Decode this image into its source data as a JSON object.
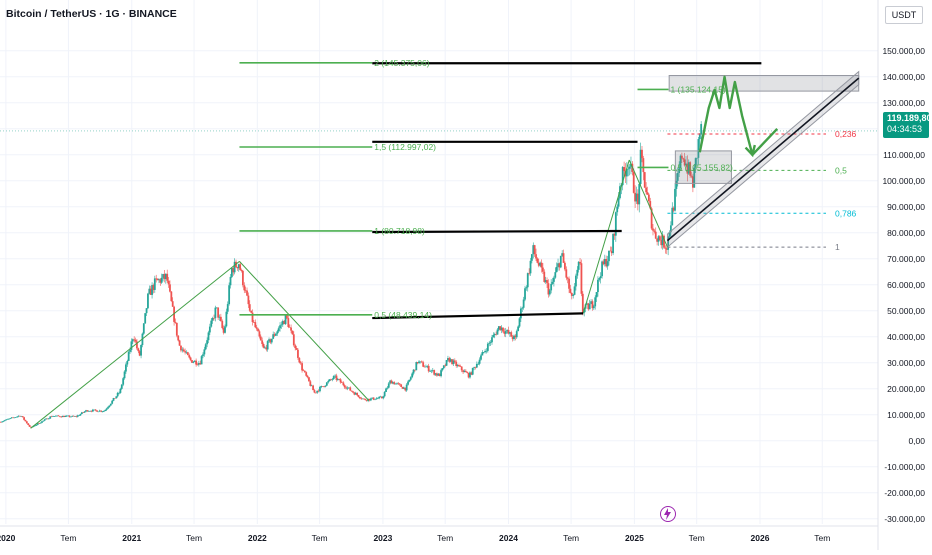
{
  "header": {
    "title": "Bitcoin / TetherUS · 1G · BINANCE",
    "currency": "USDT"
  },
  "price_label": {
    "price": "119.189,80",
    "countdown": "04:34:53"
  },
  "colors": {
    "up_candle": "#26a69a",
    "down_candle": "#ef5350",
    "drawing_green": "#43a047",
    "price_tag": "#089981",
    "fib_red": "#f23645",
    "fib_green": "#4caf50",
    "fib_teal": "#00bcd4",
    "fib_gray": "#787b86",
    "black_line": "#000000",
    "grid": "#f0f3fa"
  },
  "chart_data": {
    "type": "candlestick",
    "title": "Bitcoin / TetherUS · 1G · BINANCE",
    "yaxis": {
      "unit": "USDT",
      "range": [
        -32000,
        158000
      ],
      "ticks": [
        {
          "value": 150000,
          "label": "150.000,00"
        },
        {
          "value": 140000,
          "label": "140.000,00"
        },
        {
          "value": 130000,
          "label": "130.000,00"
        },
        {
          "value": 120000,
          "label": "120.000,00"
        },
        {
          "value": 110000,
          "label": "110.000,00"
        },
        {
          "value": 100000,
          "label": "100.000,00"
        },
        {
          "value": 90000,
          "label": "90.000,00"
        },
        {
          "value": 80000,
          "label": "80.000,00"
        },
        {
          "value": 70000,
          "label": "70.000,00"
        },
        {
          "value": 60000,
          "label": "60.000,00"
        },
        {
          "value": 50000,
          "label": "50.000,00"
        },
        {
          "value": 40000,
          "label": "40.000,00"
        },
        {
          "value": 30000,
          "label": "30.000,00"
        },
        {
          "value": 20000,
          "label": "20.000,00"
        },
        {
          "value": 10000,
          "label": "10.000,00"
        },
        {
          "value": 0,
          "label": "0,00"
        },
        {
          "value": -10000,
          "label": "-10.000,00"
        },
        {
          "value": -20000,
          "label": "-20.000,00"
        },
        {
          "value": -30000,
          "label": "-30.000,00"
        }
      ]
    },
    "xaxis": {
      "range": [
        "2019-12-15",
        "2026-12-10"
      ],
      "ticks": [
        {
          "date": "2020-01-01",
          "label": "2020",
          "bold": true
        },
        {
          "date": "2020-07-01",
          "label": "Tem",
          "bold": false
        },
        {
          "date": "2021-01-01",
          "label": "2021",
          "bold": true
        },
        {
          "date": "2021-07-01",
          "label": "Tem",
          "bold": false
        },
        {
          "date": "2022-01-01",
          "label": "2022",
          "bold": true
        },
        {
          "date": "2022-07-01",
          "label": "Tem",
          "bold": false
        },
        {
          "date": "2023-01-01",
          "label": "2023",
          "bold": true
        },
        {
          "date": "2023-07-01",
          "label": "Tem",
          "bold": false
        },
        {
          "date": "2024-01-01",
          "label": "2024",
          "bold": true
        },
        {
          "date": "2024-07-01",
          "label": "Tem",
          "bold": false
        },
        {
          "date": "2025-01-01",
          "label": "2025",
          "bold": true
        },
        {
          "date": "2025-07-01",
          "label": "Tem",
          "bold": false
        },
        {
          "date": "2026-01-01",
          "label": "2026",
          "bold": true
        },
        {
          "date": "2026-07-01",
          "label": "Tem",
          "bold": false
        }
      ]
    },
    "price_anchors": [
      {
        "date": "2019-12-15",
        "price": 7200
      },
      {
        "date": "2020-02-15",
        "price": 9800
      },
      {
        "date": "2020-03-15",
        "price": 5000
      },
      {
        "date": "2020-05-15",
        "price": 9500
      },
      {
        "date": "2020-07-25",
        "price": 9300
      },
      {
        "date": "2020-08-25",
        "price": 11700
      },
      {
        "date": "2020-10-15",
        "price": 11500
      },
      {
        "date": "2020-11-30",
        "price": 19000
      },
      {
        "date": "2021-01-08",
        "price": 41000
      },
      {
        "date": "2021-01-25",
        "price": 32000
      },
      {
        "date": "2021-02-20",
        "price": 56000
      },
      {
        "date": "2021-03-13",
        "price": 61000
      },
      {
        "date": "2021-04-14",
        "price": 63000
      },
      {
        "date": "2021-05-20",
        "price": 37000
      },
      {
        "date": "2021-06-22",
        "price": 31000
      },
      {
        "date": "2021-07-20",
        "price": 30000
      },
      {
        "date": "2021-09-05",
        "price": 51000
      },
      {
        "date": "2021-09-28",
        "price": 41000
      },
      {
        "date": "2021-10-20",
        "price": 66000
      },
      {
        "date": "2021-11-10",
        "price": 68500
      },
      {
        "date": "2021-12-15",
        "price": 48000
      },
      {
        "date": "2022-01-22",
        "price": 35000
      },
      {
        "date": "2022-03-28",
        "price": 47500
      },
      {
        "date": "2022-05-12",
        "price": 28000
      },
      {
        "date": "2022-06-18",
        "price": 18500
      },
      {
        "date": "2022-08-15",
        "price": 24500
      },
      {
        "date": "2022-09-30",
        "price": 19500
      },
      {
        "date": "2022-11-09",
        "price": 15800
      },
      {
        "date": "2022-12-31",
        "price": 16500
      },
      {
        "date": "2023-01-25",
        "price": 23000
      },
      {
        "date": "2023-03-10",
        "price": 20000
      },
      {
        "date": "2023-04-14",
        "price": 30500
      },
      {
        "date": "2023-06-15",
        "price": 25000
      },
      {
        "date": "2023-07-13",
        "price": 31500
      },
      {
        "date": "2023-09-11",
        "price": 25000
      },
      {
        "date": "2023-10-25",
        "price": 34500
      },
      {
        "date": "2023-12-08",
        "price": 44000
      },
      {
        "date": "2024-01-23",
        "price": 39000
      },
      {
        "date": "2024-03-14",
        "price": 73500
      },
      {
        "date": "2024-05-01",
        "price": 57000
      },
      {
        "date": "2024-06-05",
        "price": 71500
      },
      {
        "date": "2024-07-05",
        "price": 54000
      },
      {
        "date": "2024-07-28",
        "price": 69000
      },
      {
        "date": "2024-08-05",
        "price": 50000
      },
      {
        "date": "2024-09-06",
        "price": 53000
      },
      {
        "date": "2024-09-28",
        "price": 66000
      },
      {
        "date": "2024-10-29",
        "price": 73000
      },
      {
        "date": "2024-11-22",
        "price": 99000
      },
      {
        "date": "2024-12-17",
        "price": 108000
      },
      {
        "date": "2025-01-13",
        "price": 90000
      },
      {
        "date": "2025-01-20",
        "price": 109000
      },
      {
        "date": "2025-02-28",
        "price": 80000
      },
      {
        "date": "2025-04-07",
        "price": 75000
      },
      {
        "date": "2025-05-22",
        "price": 111000
      },
      {
        "date": "2025-06-22",
        "price": 99000
      },
      {
        "date": "2025-07-13",
        "price": 119200
      }
    ],
    "drawings": {
      "trend_lines": [
        {
          "from": [
            "2020-03-13",
            4800
          ],
          "to": [
            "2021-11-10",
            69000
          ]
        },
        {
          "from": [
            "2021-11-10",
            69000
          ],
          "to": [
            "2022-11-21",
            15500
          ]
        },
        {
          "from": [
            "2024-08-05",
            49000
          ],
          "to": [
            "2024-12-17",
            108000
          ]
        },
        {
          "from": [
            "2024-12-17",
            108000
          ],
          "to": [
            "2025-04-07",
            74500
          ]
        }
      ],
      "black_lines": [
        {
          "from": [
            "2022-12-01",
            145200
          ],
          "to": [
            "2026-01-05",
            145200
          ]
        },
        {
          "from": [
            "2022-12-01",
            115000
          ],
          "to": [
            "2025-01-10",
            115000
          ]
        },
        {
          "from": [
            "2022-12-01",
            80300
          ],
          "to": [
            "2024-11-25",
            80700
          ]
        },
        {
          "from": [
            "2022-12-01",
            47200
          ],
          "to": [
            "2024-08-05",
            49000
          ]
        }
      ],
      "fib_left": [
        {
          "label": "2 (145.375,06)",
          "value": 145375,
          "from": "2021-11-10",
          "to": "2022-12-01"
        },
        {
          "label": "1,5 (112.997,02)",
          "value": 112997,
          "from": "2021-11-10",
          "to": "2022-12-01"
        },
        {
          "label": "1 (80.718,98)",
          "value": 80719,
          "from": "2021-11-10",
          "to": "2022-12-01"
        },
        {
          "label": "0,5 (48.439,14)",
          "value": 48439,
          "from": "2021-11-10",
          "to": "2022-12-01"
        }
      ],
      "fib_right": [
        {
          "label": "1 (135.124,15)",
          "value": 135124,
          "from": "2025-01-10",
          "to": "2025-04-10"
        },
        {
          "label": "0,5 (105.155,82)",
          "value": 105156,
          "from": "2025-01-10",
          "to": "2025-04-10"
        }
      ],
      "retracement": [
        {
          "label": "0,236",
          "value": 118000,
          "color": "#f23645"
        },
        {
          "label": "0,5",
          "value": 104000,
          "color": "#4caf50"
        },
        {
          "label": "0,786",
          "value": 87500,
          "color": "#00bcd4"
        },
        {
          "label": "1",
          "value": 74500,
          "color": "#787b86"
        }
      ],
      "zones": [
        {
          "from": "2025-04-12",
          "to": "2026-10-15",
          "top": 140500,
          "bottom": 134500
        },
        {
          "from": "2025-04-30",
          "to": "2025-10-10",
          "top": 111500,
          "bottom": 99000
        }
      ],
      "channel": {
        "from": [
          "2025-04-07",
          74500
        ],
        "to": [
          "2026-10-15",
          137000
        ],
        "width": 5000
      },
      "projection": [
        [
          "2025-07-10",
          111000
        ],
        [
          "2025-08-05",
          128000
        ],
        [
          "2025-08-22",
          135000
        ],
        [
          "2025-09-05",
          128000
        ],
        [
          "2025-09-20",
          140000
        ],
        [
          "2025-10-05",
          128000
        ],
        [
          "2025-10-20",
          138000
        ],
        [
          "2025-11-10",
          125000
        ],
        [
          "2025-12-10",
          110000
        ],
        [
          "2026-02-20",
          120000
        ]
      ]
    }
  }
}
